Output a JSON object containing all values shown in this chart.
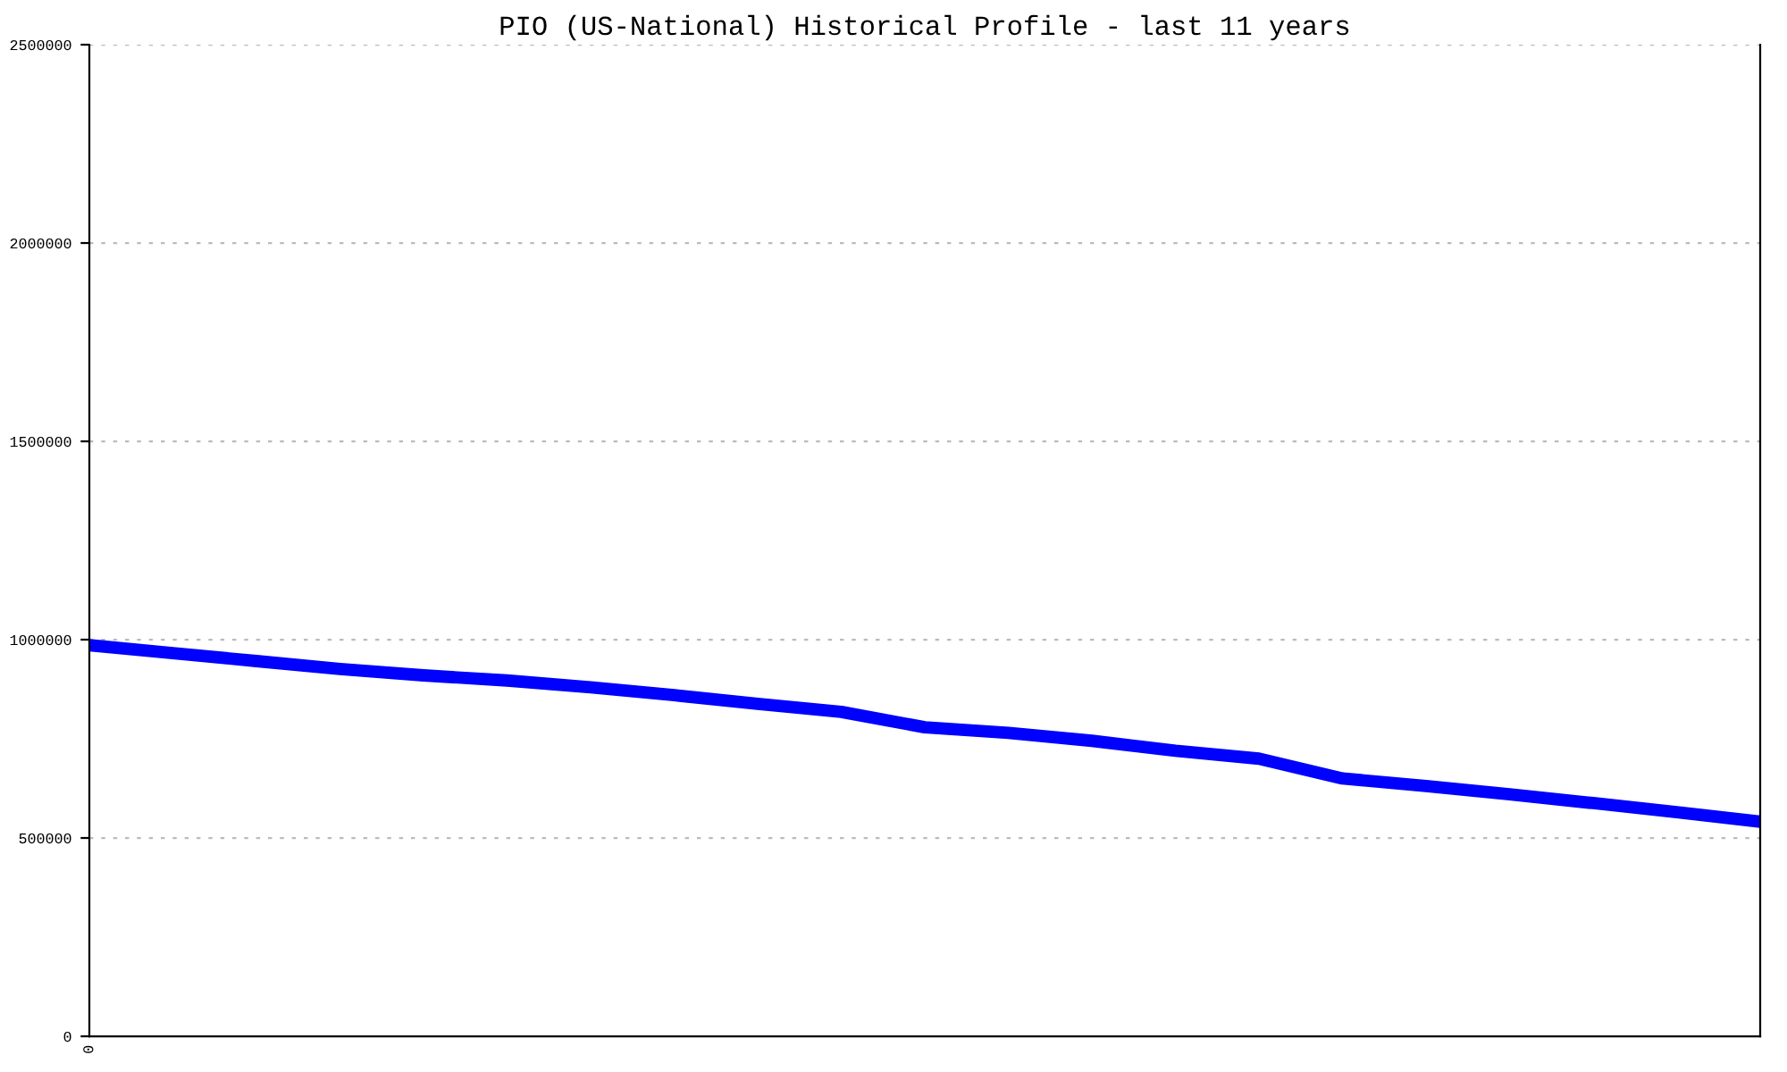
{
  "chart_data": {
    "type": "line",
    "title": "PIO (US-National) Historical Profile - last 11 years",
    "categories": [
      "0",
      null,
      null,
      null,
      null,
      null,
      null,
      null,
      null,
      null,
      null,
      null,
      null,
      null,
      null,
      null,
      null,
      null,
      null,
      null,
      null
    ],
    "series": [
      {
        "color": "#0000ff",
        "values": [
          986000,
          966000,
          946000,
          926000,
          910000,
          897000,
          880000,
          860000,
          838000,
          818000,
          779000,
          765000,
          745000,
          720000,
          700000,
          650000,
          631000,
          610000,
          588000,
          565000,
          541000
        ]
      }
    ],
    "ylim": [
      0,
      2500000
    ],
    "yticks": [
      0,
      500000,
      1000000,
      1500000,
      2000000,
      2500000
    ],
    "grid": "y",
    "marker": "none",
    "line_style": "solid",
    "legend": false
  }
}
